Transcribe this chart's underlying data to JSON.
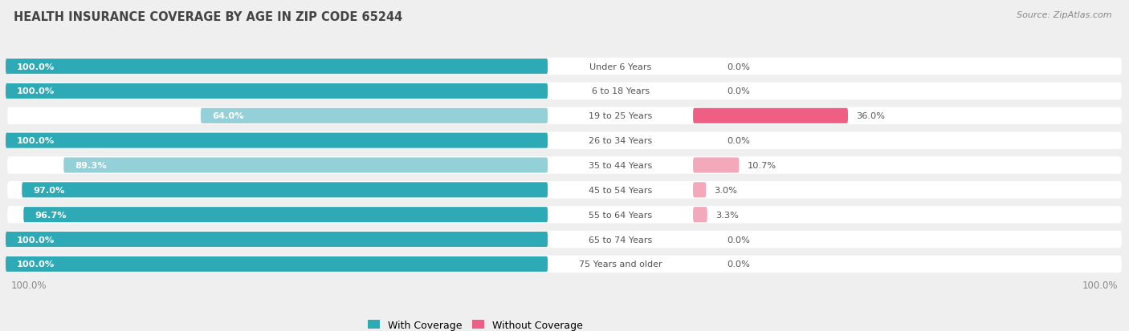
{
  "title": "HEALTH INSURANCE COVERAGE BY AGE IN ZIP CODE 65244",
  "source": "Source: ZipAtlas.com",
  "categories": [
    "Under 6 Years",
    "6 to 18 Years",
    "19 to 25 Years",
    "26 to 34 Years",
    "35 to 44 Years",
    "45 to 54 Years",
    "55 to 64 Years",
    "65 to 74 Years",
    "75 Years and older"
  ],
  "with_coverage": [
    100.0,
    100.0,
    64.0,
    100.0,
    89.3,
    97.0,
    96.7,
    100.0,
    100.0
  ],
  "without_coverage": [
    0.0,
    0.0,
    36.0,
    0.0,
    10.7,
    3.0,
    3.3,
    0.0,
    0.0
  ],
  "with_color_full": "#2EAAB6",
  "with_color_light": "#93D0D8",
  "without_color_full": "#EF5F85",
  "without_color_light": "#F4A8BC",
  "bg_color": "#EFEFEF",
  "row_bg_color": "#FFFFFF",
  "title_color": "#444444",
  "source_color": "#888888",
  "label_white": "#FFFFFF",
  "label_dark": "#555555",
  "legend_with": "With Coverage",
  "legend_without": "Without Coverage",
  "footer_value": "100.0%",
  "with_threshold": 90,
  "without_threshold": 30
}
